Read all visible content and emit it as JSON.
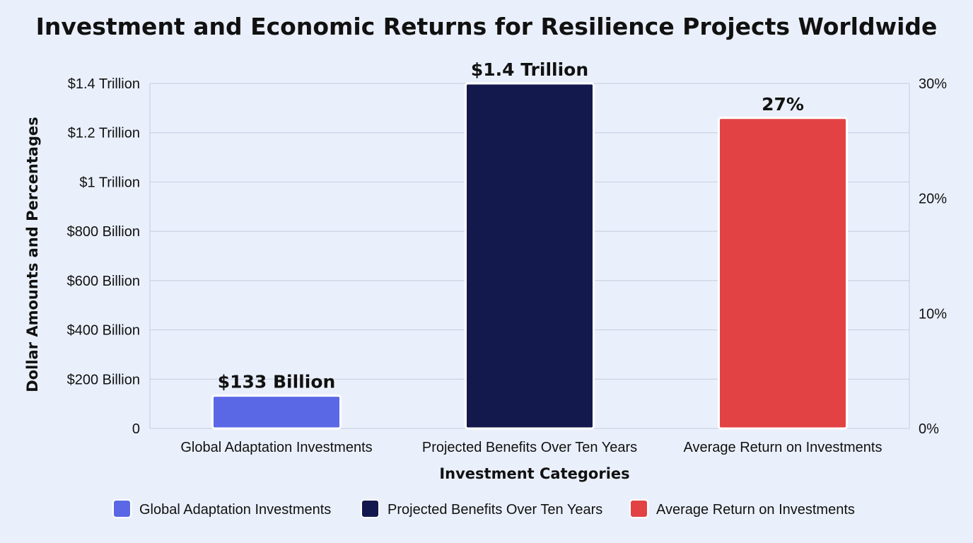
{
  "chart_data": {
    "type": "bar",
    "title": "Investment and Economic Returns for Resilience Projects Worldwide",
    "xlabel": "Investment Categories",
    "ylabel": "Dollar Amounts and Percentages",
    "categories": [
      "Global Adaptation Investments",
      "Projected Benefits Over Ten Years",
      "Average Return on Investments"
    ],
    "values": [
      133000000000,
      1400000000000,
      27
    ],
    "value_axis": [
      "left",
      "left",
      "right"
    ],
    "data_labels": [
      "$133 Billion",
      "$1.4 Trillion",
      "27%"
    ],
    "colors": [
      "#5b68e6",
      "#14194d",
      "#e24244"
    ],
    "left_axis": {
      "ylim": [
        0,
        1400000000000
      ],
      "ticks": [
        {
          "value": 0,
          "label": "0"
        },
        {
          "value": 200000000000,
          "label": "$200 Billion"
        },
        {
          "value": 400000000000,
          "label": "$400 Billion"
        },
        {
          "value": 600000000000,
          "label": "$600 Billion"
        },
        {
          "value": 800000000000,
          "label": "$800 Billion"
        },
        {
          "value": 1000000000000,
          "label": "$1 Trillion"
        },
        {
          "value": 1200000000000,
          "label": "$1.2 Trillion"
        },
        {
          "value": 1400000000000,
          "label": "$1.4 Trillion"
        }
      ]
    },
    "right_axis": {
      "ylim": [
        0,
        30
      ],
      "ticks": [
        {
          "value": 0,
          "label": "0%"
        },
        {
          "value": 10,
          "label": "10%"
        },
        {
          "value": 20,
          "label": "20%"
        },
        {
          "value": 30,
          "label": "30%"
        }
      ]
    },
    "legend": {
      "placement": "bottom",
      "entries": [
        "Global Adaptation Investments",
        "Projected Benefits Over Ten Years",
        "Average Return on Investments"
      ]
    },
    "grid": true
  }
}
